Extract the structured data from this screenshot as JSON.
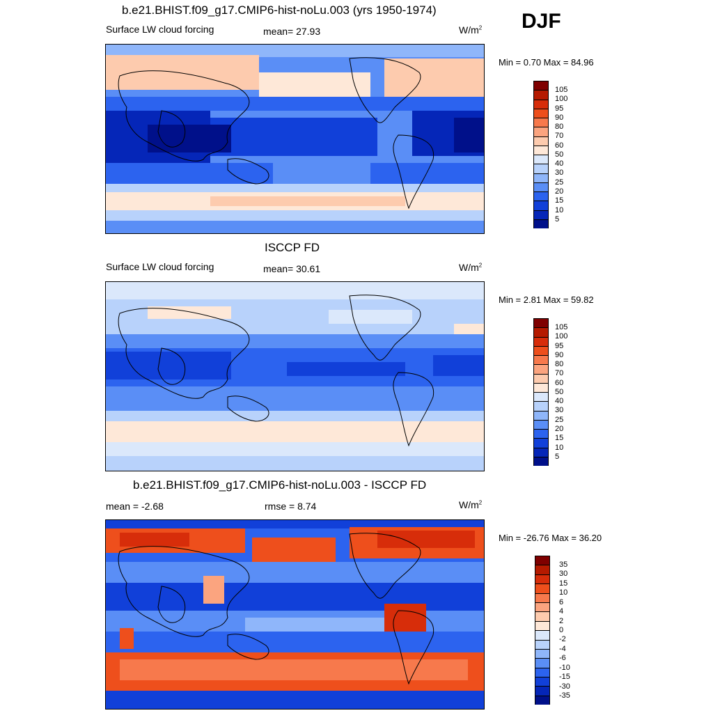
{
  "season": "DJF",
  "units": "W/m",
  "units_sup": "2",
  "panels": [
    {
      "title": "b.e21.BHIST.f09_g17.CMIP6-hist-noLu.003 (yrs 1950-1974)",
      "left_label": "Surface LW cloud forcing",
      "center_label": "mean=  27.93",
      "minmax": "Min =   0.70 Max =  84.96",
      "colorbar_labels": [
        "105",
        "100",
        "95",
        "90",
        "80",
        "70",
        "60",
        "50",
        "40",
        "30",
        "25",
        "20",
        "15",
        "10",
        "5"
      ],
      "colors": [
        "#7f0000",
        "#b51a00",
        "#d72d0a",
        "#ee4f1c",
        "#f7794c",
        "#fba47f",
        "#fdcbae",
        "#fee8d8",
        "#dbe8fb",
        "#b8d2fb",
        "#8fb6fa",
        "#5a8ef6",
        "#2c63ef",
        "#1140d9",
        "#0526b8",
        "#00108a"
      ]
    },
    {
      "title": "ISCCP FD",
      "left_label": "Surface LW cloud forcing",
      "center_label": "mean=  30.61",
      "minmax": "Min =   2.81 Max =  59.82",
      "colorbar_labels": [
        "105",
        "100",
        "95",
        "90",
        "80",
        "70",
        "60",
        "50",
        "40",
        "30",
        "25",
        "20",
        "15",
        "10",
        "5"
      ],
      "colors": [
        "#7f0000",
        "#b51a00",
        "#d72d0a",
        "#ee4f1c",
        "#f7794c",
        "#fba47f",
        "#fdcbae",
        "#fee8d8",
        "#dbe8fb",
        "#b8d2fb",
        "#8fb6fa",
        "#5a8ef6",
        "#2c63ef",
        "#1140d9",
        "#0526b8",
        "#00108a"
      ]
    },
    {
      "title": "b.e21.BHIST.f09_g17.CMIP6-hist-noLu.003 - ISCCP FD",
      "left_label": "mean =  -2.68",
      "center_label": "rmse =   8.74",
      "minmax": "Min = -26.76 Max =  36.20",
      "colorbar_labels": [
        "35",
        "30",
        "15",
        "10",
        "6",
        "4",
        "2",
        "0",
        "-2",
        "-4",
        "-6",
        "-10",
        "-15",
        "-30",
        "-35"
      ],
      "colors": [
        "#7f0000",
        "#b51a00",
        "#d72d0a",
        "#ee4f1c",
        "#f7794c",
        "#fba47f",
        "#fdcbae",
        "#fee8d8",
        "#dbe8fb",
        "#b8d2fb",
        "#8fb6fa",
        "#5a8ef6",
        "#2c63ef",
        "#1140d9",
        "#0526b8",
        "#00108a"
      ]
    }
  ]
}
